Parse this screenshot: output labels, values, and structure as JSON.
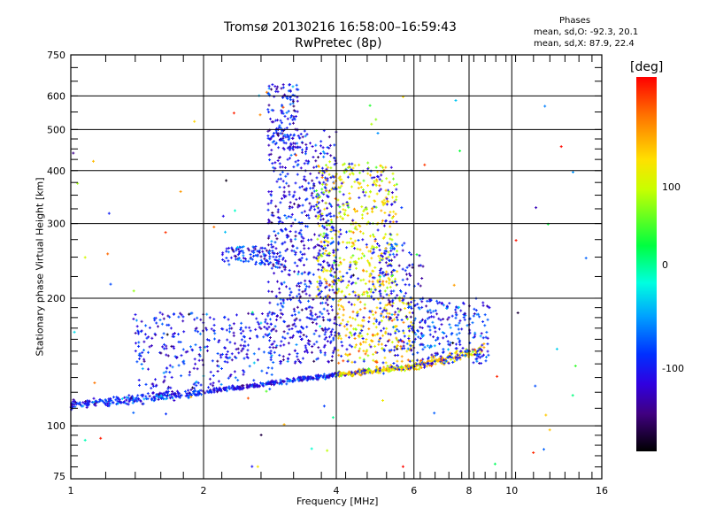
{
  "chart_data": {
    "type": "scatter",
    "title": "Tromsø 20130216 16:58:00–16:59:43",
    "subtitle": "RwPretec (8p)",
    "xlabel": "Frequency [MHz]",
    "ylabel": "Stationary phase Virtual Height [km]",
    "xscale": "log",
    "yscale": "log",
    "xlim": [
      1,
      16
    ],
    "ylim": [
      75,
      750
    ],
    "xticks": [
      1,
      2,
      4,
      6,
      8,
      10,
      16
    ],
    "yticks": [
      75,
      100,
      200,
      300,
      400,
      500,
      600,
      750
    ],
    "grid": true,
    "legend": {
      "header": "Phases",
      "o_line": "mean, sd,O:  -92.3, 20.1",
      "x_line": "mean, sd,X:  87.9, 22.4"
    },
    "colorbar": {
      "title": "[deg]",
      "ticks": [
        100,
        0,
        -100
      ],
      "range": [
        -180,
        180
      ]
    },
    "traces": [
      {
        "f": [
          1.0,
          2.0
        ],
        "h": [
          112,
          120
        ],
        "phase": -95,
        "spread": 0.03,
        "n": 260
      },
      {
        "f": [
          2.0,
          4.0
        ],
        "h": [
          120,
          132
        ],
        "phase": -100,
        "spread": 0.015,
        "n": 260
      },
      {
        "f": [
          4.0,
          6.0
        ],
        "h": [
          132,
          138
        ],
        "phase": 100,
        "spread": 0.02,
        "n": 220
      },
      {
        "f": [
          6.0,
          8.7
        ],
        "h": [
          138,
          152
        ],
        "phase": 110,
        "spread": 0.03,
        "n": 160
      },
      {
        "f": [
          1.4,
          2.9
        ],
        "h": [
          122,
          185
        ],
        "phase": -100,
        "spread": 0,
        "n": 320
      },
      {
        "f": [
          2.2,
          3.0
        ],
        "h": [
          240,
          265
        ],
        "phase": -95,
        "spread": 0,
        "n": 110
      },
      {
        "f": [
          2.8,
          4.0
        ],
        "h": [
          140,
          500
        ],
        "phase": -105,
        "spread": 0,
        "n": 700
      },
      {
        "f": [
          2.8,
          3.3
        ],
        "h": [
          450,
          640
        ],
        "phase": -100,
        "spread": 0,
        "n": 120
      },
      {
        "f": [
          3.6,
          5.5
        ],
        "h": [
          200,
          420
        ],
        "phase": 90,
        "spread": 0,
        "n": 550
      },
      {
        "f": [
          4.0,
          6.0
        ],
        "h": [
          140,
          200
        ],
        "phase": 100,
        "spread": 0,
        "n": 260
      },
      {
        "f": [
          5.0,
          6.3
        ],
        "h": [
          150,
          270
        ],
        "phase": -100,
        "spread": 0,
        "n": 150
      },
      {
        "f": [
          6.0,
          8.9
        ],
        "h": [
          140,
          200
        ],
        "phase": -90,
        "spread": 0,
        "n": 220
      },
      {
        "f": [
          1.0,
          15.0
        ],
        "h": [
          80,
          650
        ],
        "phase": 0,
        "spread": 0,
        "n": 90
      }
    ]
  }
}
